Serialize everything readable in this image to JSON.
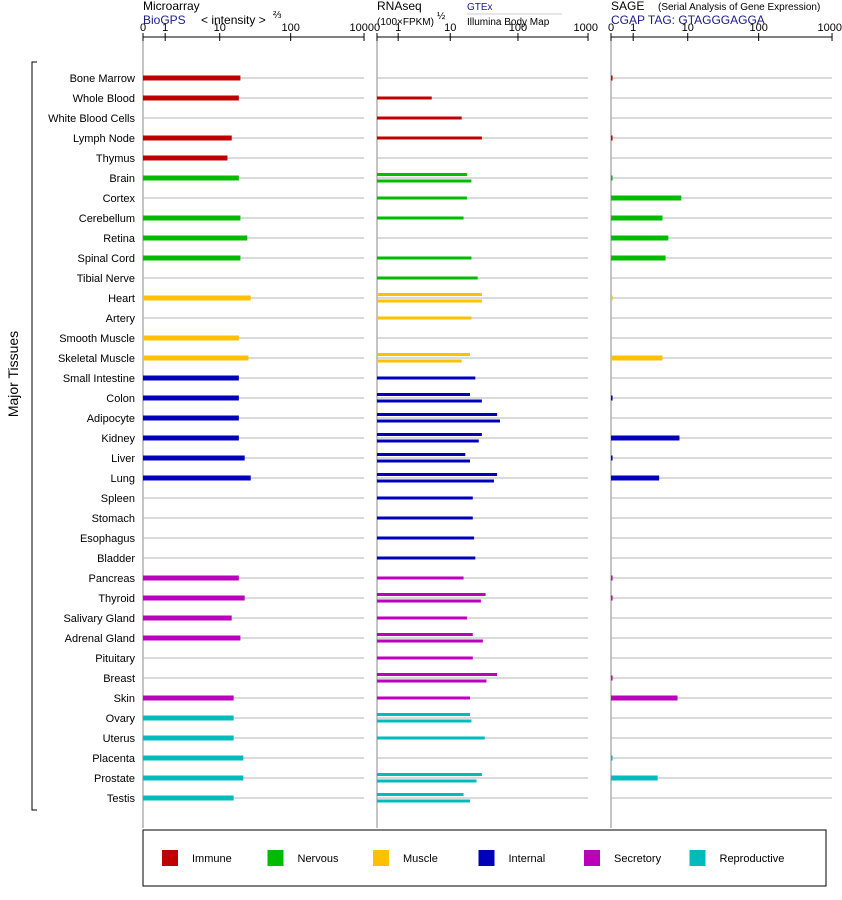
{
  "panels": {
    "microarray": {
      "title": "Microarray",
      "source": "BioGPS",
      "unit_prefix": "< intensity >",
      "unit_exp": "⅔"
    },
    "rnaseq": {
      "title": "RNAseq",
      "sources": [
        "GTEx",
        "Illumina Body Map"
      ],
      "unit": "(100×FPKM)",
      "unit_exp": "½"
    },
    "sage": {
      "title": "SAGE",
      "subtitle": "(Serial Analysis of Gene Expression)",
      "source": "CGAP TAG: GTAGGGAGGA"
    }
  },
  "y_axis_title": "Major Tissues",
  "chart_data": {
    "type": "bar",
    "orientation": "horizontal",
    "axis_ticks": [
      "0",
      "1",
      "10",
      "100",
      "1000"
    ],
    "tick_values": [
      0,
      1,
      10,
      100,
      1000
    ],
    "xlim": [
      0,
      1000
    ],
    "grid": true,
    "legend_position": "bottom",
    "categories": [
      "Immune",
      "Nervous",
      "Muscle",
      "Internal",
      "Secretory",
      "Reproductive"
    ],
    "category_colors": {
      "Immune": "#c00000",
      "Nervous": "#00bb00",
      "Muscle": "#ffc000",
      "Internal": "#0000bb",
      "Secretory": "#bb00bb",
      "Reproductive": "#00bbbb"
    },
    "tissues": [
      {
        "name": "Bone Marrow",
        "category": "Immune",
        "microarray": 20,
        "rnaseq": [],
        "sage": 0.05
      },
      {
        "name": "Whole Blood",
        "category": "Immune",
        "microarray": 19,
        "rnaseq": [
          5
        ],
        "sage": null
      },
      {
        "name": "White Blood Cells",
        "category": "Immune",
        "microarray": null,
        "rnaseq": [
          15
        ],
        "sage": null
      },
      {
        "name": "Lymph Node",
        "category": "Immune",
        "microarray": 15,
        "rnaseq": [
          30
        ],
        "sage": 0.05
      },
      {
        "name": "Thymus",
        "category": "Immune",
        "microarray": 13,
        "rnaseq": [],
        "sage": null
      },
      {
        "name": "Brain",
        "category": "Nervous",
        "microarray": 19,
        "rnaseq": [
          18,
          21
        ],
        "sage": 0.05
      },
      {
        "name": "Cortex",
        "category": "Nervous",
        "microarray": null,
        "rnaseq": [
          18
        ],
        "sage": 8
      },
      {
        "name": "Cerebellum",
        "category": "Nervous",
        "microarray": 20,
        "rnaseq": [
          16
        ],
        "sage": 4
      },
      {
        "name": "Retina",
        "category": "Nervous",
        "microarray": 25,
        "rnaseq": [],
        "sage": 5
      },
      {
        "name": "Spinal Cord",
        "category": "Nervous",
        "microarray": 20,
        "rnaseq": [
          21
        ],
        "sage": 4.5
      },
      {
        "name": "Tibial Nerve",
        "category": "Nervous",
        "microarray": null,
        "rnaseq": [
          26
        ],
        "sage": null
      },
      {
        "name": "Heart",
        "category": "Muscle",
        "microarray": 28,
        "rnaseq": [
          30,
          30
        ],
        "sage": 0.05
      },
      {
        "name": "Artery",
        "category": "Muscle",
        "microarray": null,
        "rnaseq": [
          21
        ],
        "sage": null
      },
      {
        "name": "Smooth Muscle",
        "category": "Muscle",
        "microarray": 19,
        "rnaseq": [],
        "sage": null
      },
      {
        "name": "Skeletal Muscle",
        "category": "Muscle",
        "microarray": 26,
        "rnaseq": [
          20,
          15
        ],
        "sage": 4
      },
      {
        "name": "Small Intestine",
        "category": "Internal",
        "microarray": 19,
        "rnaseq": [
          24
        ],
        "sage": null
      },
      {
        "name": "Colon",
        "category": "Internal",
        "microarray": 19,
        "rnaseq": [
          20,
          30
        ],
        "sage": 0.05
      },
      {
        "name": "Adipocyte",
        "category": "Internal",
        "microarray": 19,
        "rnaseq": [
          50,
          55
        ],
        "sage": null
      },
      {
        "name": "Kidney",
        "category": "Internal",
        "microarray": 19,
        "rnaseq": [
          30,
          27
        ],
        "sage": 7.5
      },
      {
        "name": "Liver",
        "category": "Internal",
        "microarray": 23,
        "rnaseq": [
          17,
          20
        ],
        "sage": 0.05
      },
      {
        "name": "Lung",
        "category": "Internal",
        "microarray": 28,
        "rnaseq": [
          50,
          45
        ],
        "sage": 3.5
      },
      {
        "name": "Spleen",
        "category": "Internal",
        "microarray": null,
        "rnaseq": [
          22
        ],
        "sage": null
      },
      {
        "name": "Stomach",
        "category": "Internal",
        "microarray": null,
        "rnaseq": [
          22
        ],
        "sage": null
      },
      {
        "name": "Esophagus",
        "category": "Internal",
        "microarray": null,
        "rnaseq": [
          23
        ],
        "sage": null
      },
      {
        "name": "Bladder",
        "category": "Internal",
        "microarray": null,
        "rnaseq": [
          24
        ],
        "sage": null
      },
      {
        "name": "Pancreas",
        "category": "Secretory",
        "microarray": 19,
        "rnaseq": [
          16
        ],
        "sage": 0.05
      },
      {
        "name": "Thyroid",
        "category": "Secretory",
        "microarray": 23,
        "rnaseq": [
          34,
          29
        ],
        "sage": 0.05
      },
      {
        "name": "Salivary Gland",
        "category": "Secretory",
        "microarray": 15,
        "rnaseq": [
          18
        ],
        "sage": null
      },
      {
        "name": "Adrenal Gland",
        "category": "Secretory",
        "microarray": 20,
        "rnaseq": [
          22,
          31
        ],
        "sage": null
      },
      {
        "name": "Pituitary",
        "category": "Secretory",
        "microarray": null,
        "rnaseq": [
          22
        ],
        "sage": null
      },
      {
        "name": "Breast",
        "category": "Secretory",
        "microarray": null,
        "rnaseq": [
          50,
          35
        ],
        "sage": 0.05
      },
      {
        "name": "Skin",
        "category": "Secretory",
        "microarray": 16,
        "rnaseq": [
          20
        ],
        "sage": 7
      },
      {
        "name": "Ovary",
        "category": "Reproductive",
        "microarray": 16,
        "rnaseq": [
          20,
          21
        ],
        "sage": null
      },
      {
        "name": "Uterus",
        "category": "Reproductive",
        "microarray": 16,
        "rnaseq": [
          33
        ],
        "sage": null
      },
      {
        "name": "Placenta",
        "category": "Reproductive",
        "microarray": 22,
        "rnaseq": [],
        "sage": 0.05
      },
      {
        "name": "Prostate",
        "category": "Reproductive",
        "microarray": 22,
        "rnaseq": [
          30,
          25
        ],
        "sage": 3.3
      },
      {
        "name": "Testis",
        "category": "Reproductive",
        "microarray": 16,
        "rnaseq": [
          16,
          20
        ],
        "sage": null
      }
    ]
  }
}
